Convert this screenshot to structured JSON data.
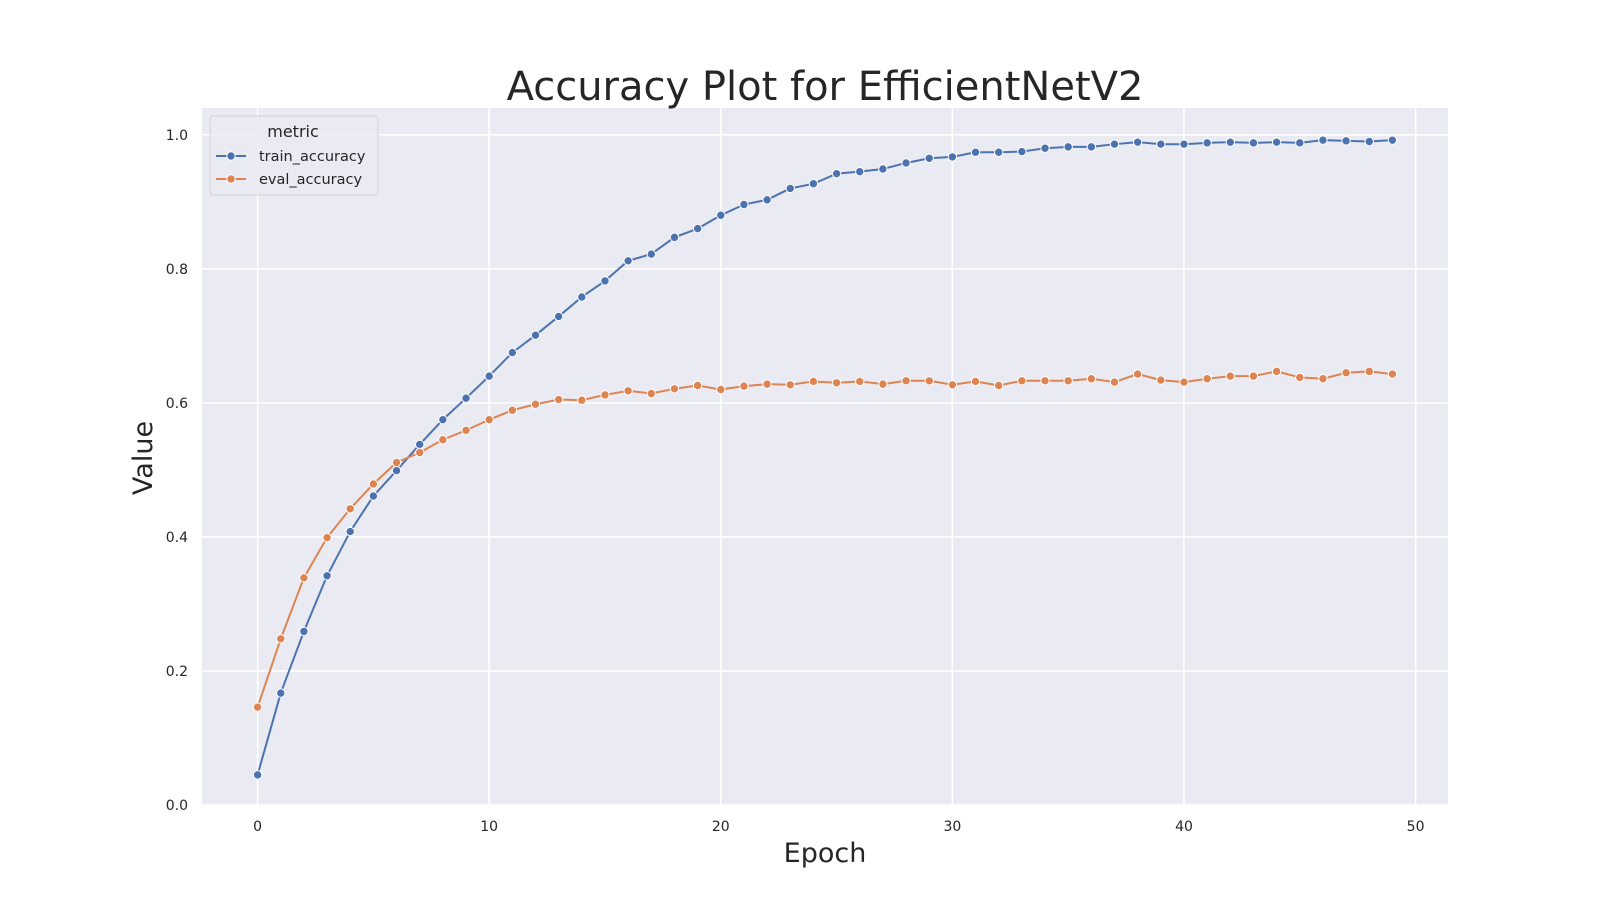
{
  "chart_data": {
    "type": "line",
    "title": "Accuracy Plot for EfficientNetV2",
    "xlabel": "Epoch",
    "ylabel": "Value",
    "xlim": [
      -2.4,
      51.4
    ],
    "ylim": [
      0.0,
      1.04
    ],
    "xticks": [
      0,
      10,
      20,
      30,
      40,
      50
    ],
    "yticks": [
      0.0,
      0.2,
      0.4,
      0.6,
      0.8,
      1.0
    ],
    "xtick_labels": [
      "0",
      "10",
      "20",
      "30",
      "40",
      "50"
    ],
    "ytick_labels": [
      "0.0",
      "0.2",
      "0.4",
      "0.6",
      "0.8",
      "1.0"
    ],
    "grid": true,
    "background": "#eaeaf2",
    "legend": {
      "title": "metric",
      "placement": "top-left"
    },
    "x": [
      0,
      1,
      2,
      3,
      4,
      5,
      6,
      7,
      8,
      9,
      10,
      11,
      12,
      13,
      14,
      15,
      16,
      17,
      18,
      19,
      20,
      21,
      22,
      23,
      24,
      25,
      26,
      27,
      28,
      29,
      30,
      31,
      32,
      33,
      34,
      35,
      36,
      37,
      38,
      39,
      40,
      41,
      42,
      43,
      44,
      45,
      46,
      47,
      48,
      49
    ],
    "series": [
      {
        "name": "train_accuracy",
        "color": "#4c72b0",
        "values": [
          0.045,
          0.167,
          0.259,
          0.342,
          0.408,
          0.461,
          0.499,
          0.538,
          0.575,
          0.607,
          0.64,
          0.675,
          0.701,
          0.729,
          0.758,
          0.782,
          0.812,
          0.822,
          0.847,
          0.86,
          0.88,
          0.896,
          0.903,
          0.92,
          0.927,
          0.942,
          0.945,
          0.949,
          0.958,
          0.965,
          0.967,
          0.974,
          0.974,
          0.975,
          0.98,
          0.982,
          0.982,
          0.986,
          0.989,
          0.986,
          0.986,
          0.988,
          0.989,
          0.988,
          0.989,
          0.988,
          0.992,
          0.991,
          0.99,
          0.992
        ]
      },
      {
        "name": "eval_accuracy",
        "color": "#dd8452",
        "values": [
          0.146,
          0.248,
          0.339,
          0.399,
          0.442,
          0.479,
          0.511,
          0.526,
          0.545,
          0.559,
          0.575,
          0.589,
          0.598,
          0.605,
          0.604,
          0.612,
          0.618,
          0.614,
          0.621,
          0.626,
          0.62,
          0.625,
          0.628,
          0.627,
          0.632,
          0.63,
          0.632,
          0.628,
          0.633,
          0.633,
          0.627,
          0.632,
          0.626,
          0.633,
          0.633,
          0.633,
          0.636,
          0.631,
          0.643,
          0.634,
          0.631,
          0.636,
          0.64,
          0.64,
          0.647,
          0.638,
          0.636,
          0.645,
          0.647,
          0.643
        ]
      }
    ]
  }
}
